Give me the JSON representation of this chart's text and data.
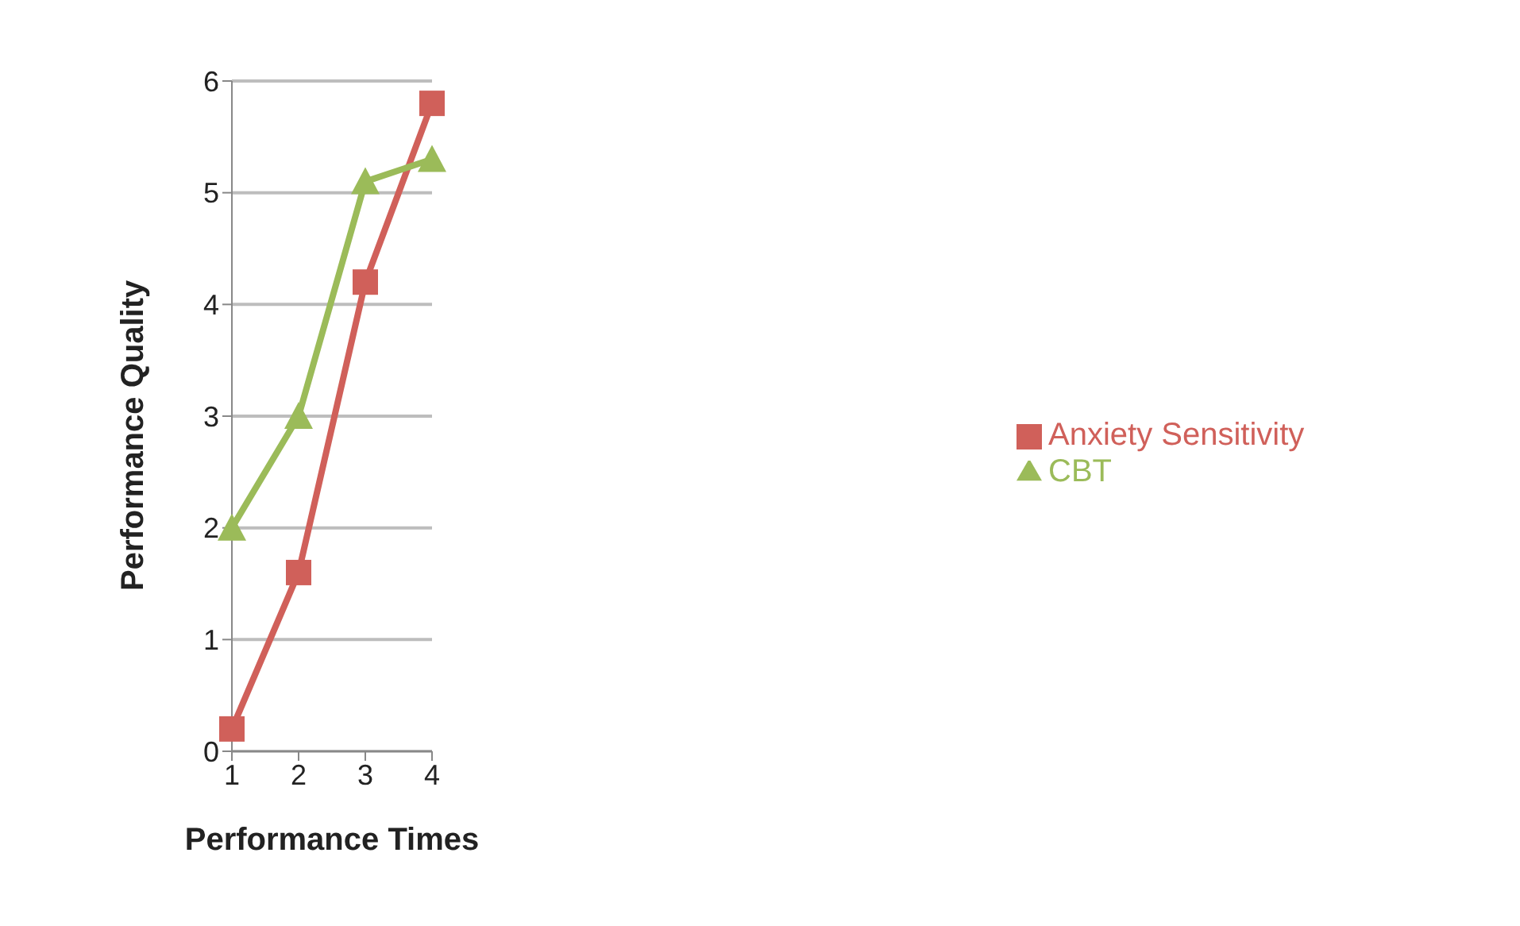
{
  "chart_data": {
    "type": "line",
    "xlabel": "Performance Times",
    "ylabel": "Performance Quality",
    "categories": [
      "1",
      "2",
      "3",
      "4"
    ],
    "series": [
      {
        "name": "Anxiety Sensitivity",
        "color": "#d0605a",
        "values": [
          0.2,
          1.6,
          4.2,
          5.8
        ],
        "marker": "square"
      },
      {
        "name": "CBT",
        "color": "#9bbb59",
        "values": [
          2.0,
          3.0,
          5.1,
          5.3
        ],
        "marker": "triangle"
      }
    ],
    "ylim": [
      0,
      6
    ],
    "yticks": [
      0,
      1,
      2,
      3,
      4,
      5,
      6
    ],
    "grid": "y",
    "legend": "right",
    "line_style": "solid"
  }
}
